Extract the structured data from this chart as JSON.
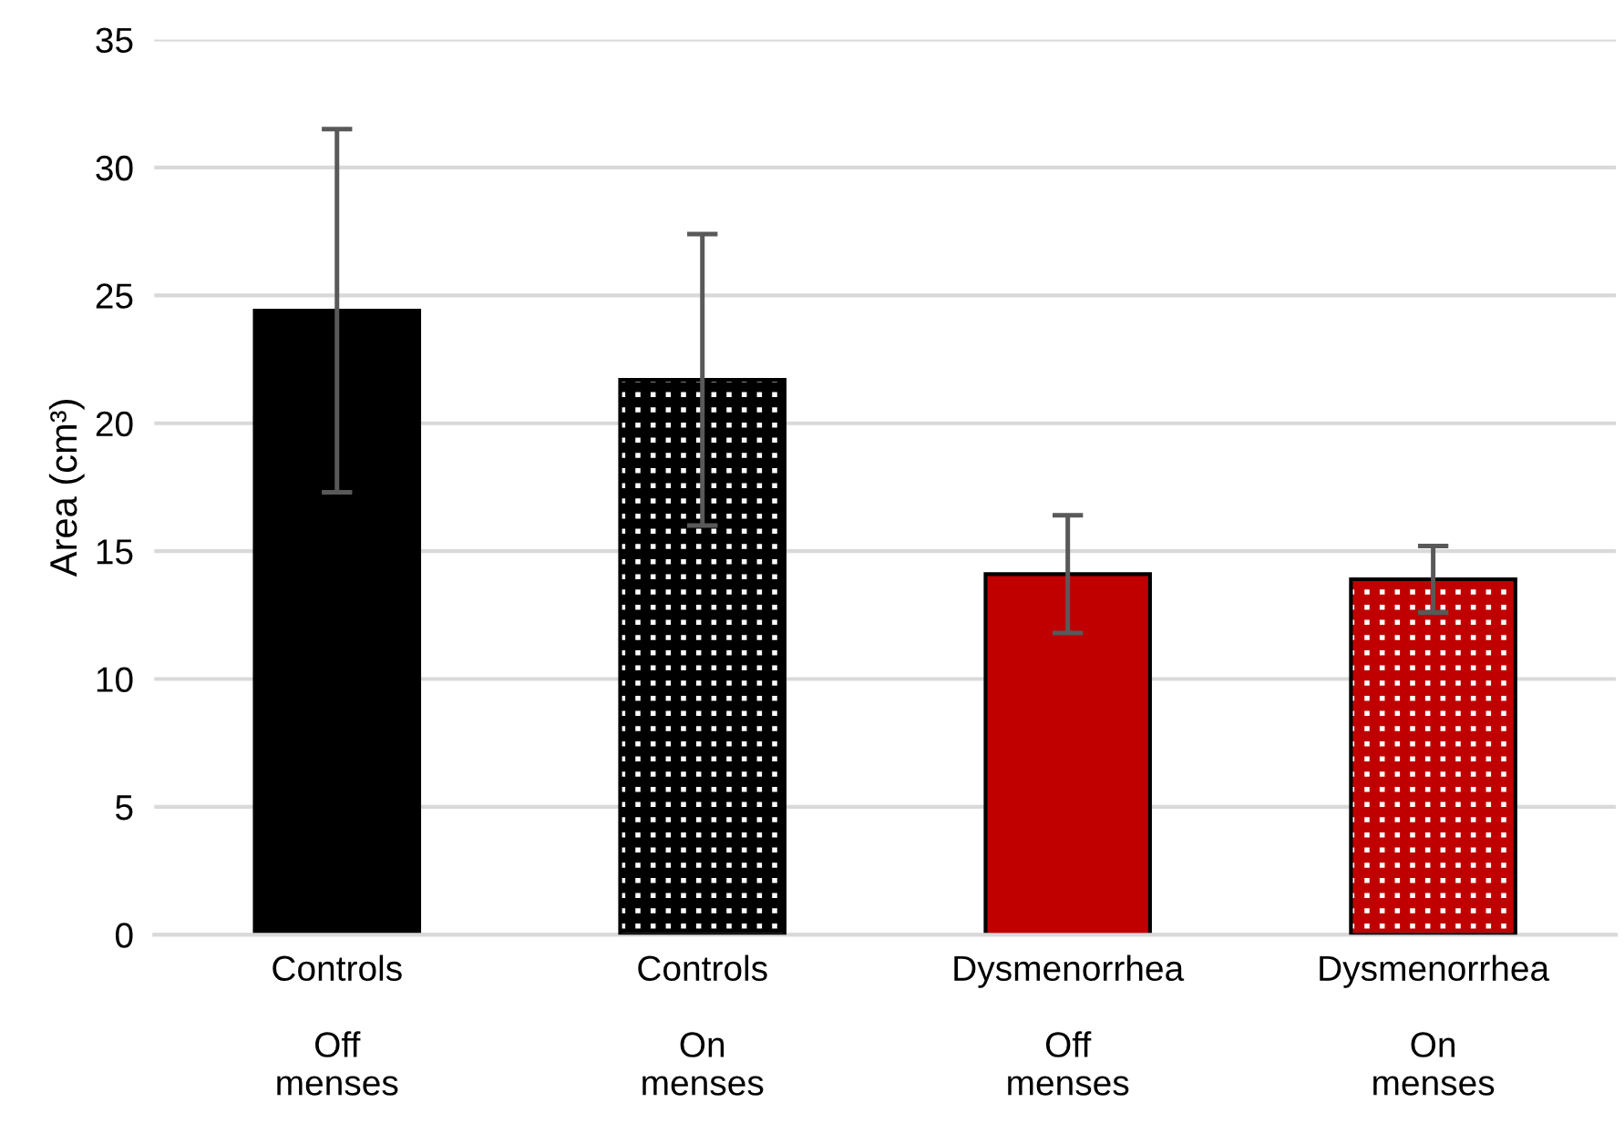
{
  "chart_data": {
    "type": "bar",
    "ylabel": "Area (cm³)",
    "categories": [
      "Controls\n\nOff\nmenses",
      "Controls\n\nOn\nmenses",
      "Dysmenorrhea\n\nOff\nmenses",
      "Dysmenorrhea\n\nOn\nmenses"
    ],
    "values": [
      24.4,
      21.7,
      14.1,
      13.9
    ],
    "errors": [
      7.1,
      5.7,
      2.3,
      1.3
    ],
    "colors": [
      "#000000",
      "#000000",
      "#c00000",
      "#c00000"
    ],
    "ylim": [
      0,
      35
    ],
    "yticks": [
      0,
      5,
      10,
      15,
      20,
      25,
      30,
      35
    ],
    "grid": "y"
  }
}
